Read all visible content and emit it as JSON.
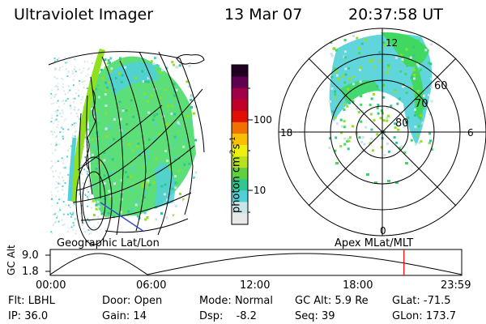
{
  "header": {
    "title": "Ultraviolet Imager",
    "date": "13 Mar 07",
    "time": "20:37:58 UT"
  },
  "left_map": {
    "caption": "Geographic Lat/Lon"
  },
  "right_map": {
    "caption": "Apex MLat/MLT",
    "mlt_labels": [
      "12",
      "18",
      "6",
      "0"
    ],
    "lat_labels": [
      "60",
      "70",
      "80"
    ]
  },
  "colorbar": {
    "unit_label": "photon cm",
    "unit_exp1": "-2",
    "unit_mid": "s",
    "unit_exp2": "-1",
    "ticks": [
      "100",
      "10"
    ],
    "colors": [
      "#e8e8e8",
      "#c8e6e8",
      "#50d0d8",
      "#30c890",
      "#60d040",
      "#b8e020",
      "#f0f010",
      "#f8c000",
      "#f07000",
      "#e01000",
      "#c00028",
      "#a00048",
      "#600050",
      "#200020"
    ]
  },
  "altitude_plot": {
    "ylabel": "GC Alt",
    "yticks": [
      "9.0",
      "1.8"
    ],
    "xticks": [
      "00:00",
      "06:00",
      "12:00",
      "18:00",
      "23:59"
    ],
    "current_time_fraction": 0.8597,
    "marker_color": "#ff0000"
  },
  "footer": {
    "row1": [
      {
        "label": "Flt:",
        "value": "LBHL"
      },
      {
        "label": "Door:",
        "value": "Open"
      },
      {
        "label": "Mode:",
        "value": "Normal"
      },
      {
        "label": "GC Alt:",
        "value": "5.9 Re"
      },
      {
        "label": "GLat:",
        "value": "-71.5"
      }
    ],
    "row2": [
      {
        "label": "IP:",
        "value": "36.0"
      },
      {
        "label": "Gain:",
        "value": "14"
      },
      {
        "label": "Dsp:",
        "value": "-8.2"
      },
      {
        "label": "Seq:",
        "value": "39"
      },
      {
        "label": "GLon:",
        "value": "173.7"
      }
    ]
  },
  "colors": {
    "aurora_green": "#40d860",
    "aurora_cyan": "#50d0d8",
    "aurora_bright": "#90e020",
    "grid_line": "#000000",
    "coast_blue": "#3050c8"
  }
}
